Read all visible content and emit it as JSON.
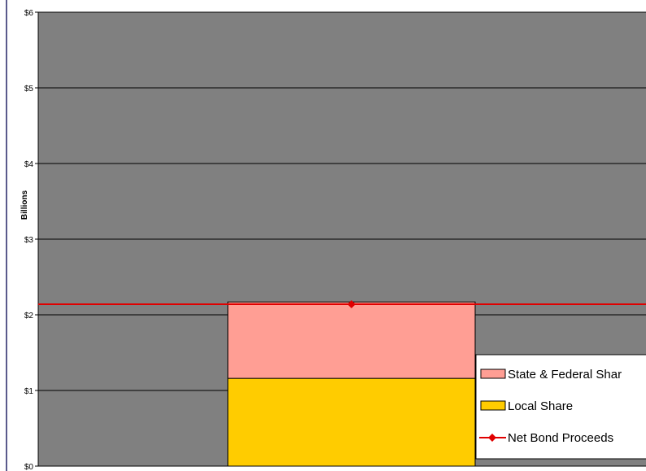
{
  "chart_data": {
    "type": "bar",
    "stacked": true,
    "title": "",
    "xlabel": "",
    "ylabel": "Billions",
    "ylim": [
      0,
      6
    ],
    "yticks": [
      "$0",
      "$1",
      "$2",
      "$3",
      "$4",
      "$5",
      "$6"
    ],
    "categories": [
      ""
    ],
    "series": [
      {
        "name": "Local Share",
        "values": [
          1.16
        ],
        "color": "#ffcc00"
      },
      {
        "name": "State & Federal Shar",
        "values": [
          1.01
        ],
        "color": "#ff9e94"
      }
    ],
    "line_series": {
      "name": "Net Bond Proceeds",
      "values": [
        2.14
      ],
      "color": "#e00000"
    },
    "grid": true,
    "plot_background": "#808080",
    "legend_position": "bottom-right"
  }
}
